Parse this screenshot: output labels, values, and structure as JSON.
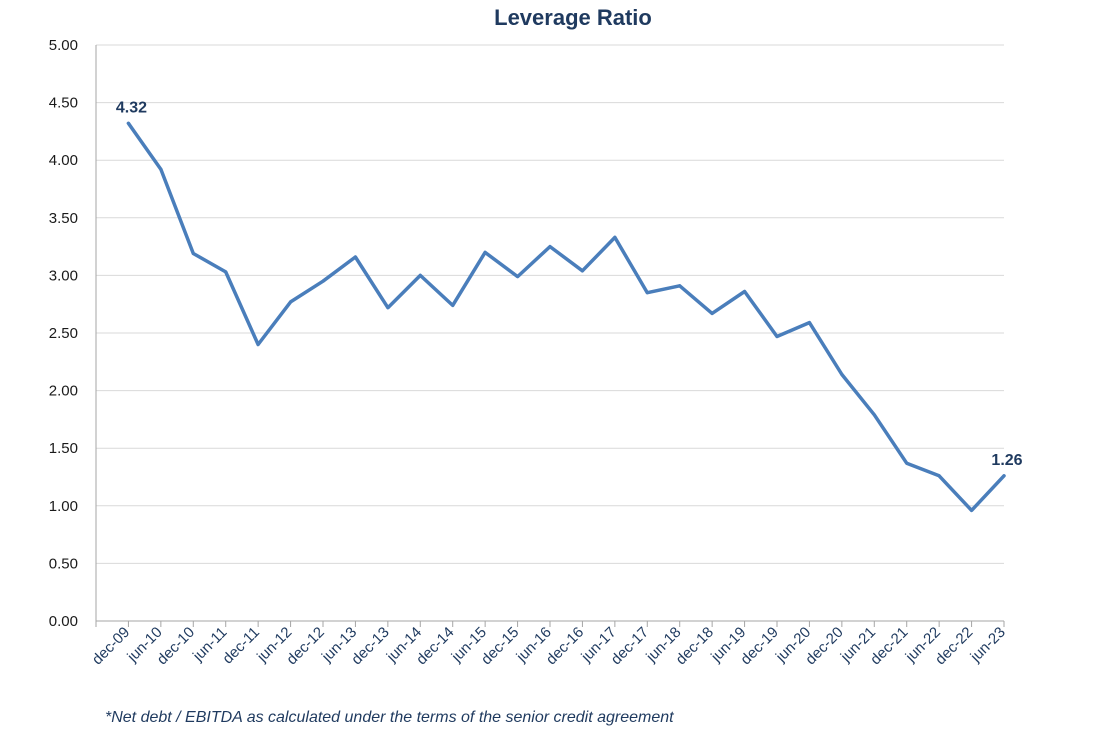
{
  "chart_data": {
    "type": "line",
    "title": "Leverage Ratio",
    "xlabel": "",
    "ylabel": "",
    "ylim": [
      0,
      5
    ],
    "yticks": [
      "0.00",
      "0.50",
      "1.00",
      "1.50",
      "2.00",
      "2.50",
      "3.00",
      "3.50",
      "4.00",
      "4.50",
      "5.00"
    ],
    "grid": true,
    "legend": "none",
    "categories": [
      "dec-09",
      "jun-10",
      "dec-10",
      "jun-11",
      "dec-11",
      "jun-12",
      "dec-12",
      "jun-13",
      "dec-13",
      "jun-14",
      "dec-14",
      "jun-15",
      "dec-15",
      "jun-16",
      "dec-16",
      "jun-17",
      "dec-17",
      "jun-18",
      "dec-18",
      "jun-19",
      "dec-19",
      "jun-20",
      "dec-20",
      "jun-21",
      "dec-21",
      "jun-22",
      "dec-22",
      "jun-23"
    ],
    "series": [
      {
        "color": "#4a7ebb",
        "values": [
          4.32,
          3.92,
          3.19,
          3.03,
          2.4,
          2.77,
          2.95,
          3.16,
          2.72,
          3.0,
          2.74,
          3.2,
          2.99,
          3.25,
          3.04,
          3.33,
          2.85,
          2.91,
          2.67,
          2.86,
          2.47,
          2.59,
          2.14,
          1.79,
          1.37,
          1.26,
          0.96,
          1.26
        ]
      }
    ],
    "data_labels": [
      {
        "index": 0,
        "text": "4.32"
      },
      {
        "index": 27,
        "text": "1.26"
      }
    ],
    "footnote": "*Net debt / EBITDA as calculated under the terms of the senior credit agreement"
  }
}
